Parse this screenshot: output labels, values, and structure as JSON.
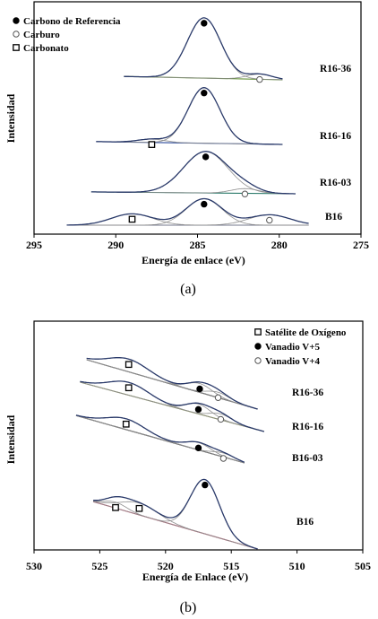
{
  "chart_data": [
    {
      "id": "a",
      "type": "line",
      "caption": "(a)",
      "xlabel": "Energía de enlace (eV)",
      "ylabel": "Intensidad",
      "xlim": [
        295,
        275
      ],
      "xticks": [
        "295",
        "290",
        "285",
        "280",
        "275"
      ],
      "legend": [
        {
          "marker": "filled-circle",
          "label": "Carbono de Referencia"
        },
        {
          "marker": "open-circle",
          "label": "Carburo"
        },
        {
          "marker": "open-square",
          "label": "Carbonato"
        }
      ],
      "samples": [
        {
          "name": "R16-36",
          "baseline": {
            "x": [
              289.5,
              279.8
            ],
            "y": [
              0.55,
              0.2
            ],
            "color": "#5a8a2a"
          },
          "peaks": [
            {
              "center": 284.6,
              "fwhm": 2.4,
              "height": 6.4,
              "type": "Carbono de Referencia"
            },
            {
              "center": 281.2,
              "fwhm": 1.8,
              "height": 0.55,
              "type": "Carburo"
            }
          ]
        },
        {
          "name": "R16-16",
          "baseline": {
            "x": [
              291.2,
              279.8
            ],
            "y": [
              0.3,
              0.0
            ],
            "color": "#2c4a9a"
          },
          "peaks": [
            {
              "center": 284.6,
              "fwhm": 2.3,
              "height": 5.9,
              "type": "Carbono de Referencia"
            },
            {
              "center": 287.8,
              "fwhm": 2.0,
              "height": 0.35,
              "type": "Carbonato"
            }
          ]
        },
        {
          "name": "R16-03",
          "baseline": {
            "x": [
              291.5,
              279.0
            ],
            "y": [
              0.2,
              0.0
            ],
            "color": "#2a7a6a"
          },
          "peaks": [
            {
              "center": 284.5,
              "fwhm": 3.2,
              "height": 4.4,
              "type": "Carbono de Referencia"
            },
            {
              "center": 282.1,
              "fwhm": 2.0,
              "height": 0.5,
              "type": "Carburo"
            }
          ]
        },
        {
          "name": "B16",
          "baseline": {
            "x": [
              293.0,
              278.2
            ],
            "y": [
              0.0,
              0.0
            ],
            "color": "#2a3a8a"
          },
          "peaks": [
            {
              "center": 284.6,
              "fwhm": 2.6,
              "height": 2.8,
              "type": "Carbono de Referencia"
            },
            {
              "center": 289.0,
              "fwhm": 3.0,
              "height": 1.2,
              "type": "Carbonato"
            },
            {
              "center": 280.6,
              "fwhm": 3.0,
              "height": 1.1,
              "type": "Carburo"
            }
          ]
        }
      ]
    },
    {
      "id": "b",
      "type": "line",
      "caption": "(b)",
      "xlabel": "Energía de Enlace (eV)",
      "ylabel": "Intensidad",
      "xlim": [
        530,
        505
      ],
      "xticks": [
        "530",
        "525",
        "520",
        "515",
        "510",
        "505"
      ],
      "legend": [
        {
          "marker": "open-square",
          "label": "Satélite de Oxígeno"
        },
        {
          "marker": "filled-circle",
          "label": "Vanadio V+5"
        },
        {
          "marker": "open-circle",
          "label": "Vanadio V+4"
        }
      ],
      "samples": [
        {
          "name": "R16-36",
          "baseline": {
            "x": [
              526.0,
              513.0
            ],
            "y": [
              5.0,
              0.0
            ],
            "color": "#333333"
          },
          "peaks": [
            {
              "center": 522.8,
              "fwhm": 3.6,
              "height": 1.3,
              "type": "Satélite de Oxígeno"
            },
            {
              "center": 517.4,
              "fwhm": 2.2,
              "height": 0.9,
              "type": "Vanadio V+5"
            },
            {
              "center": 516.0,
              "fwhm": 2.0,
              "height": 0.55,
              "type": "Vanadio V+4"
            }
          ]
        },
        {
          "name": "R16-16",
          "baseline": {
            "x": [
              526.5,
              512.5
            ],
            "y": [
              5.0,
              0.0
            ],
            "color": "#7a8a2a"
          },
          "peaks": [
            {
              "center": 522.8,
              "fwhm": 3.6,
              "height": 1.3,
              "type": "Satélite de Oxígeno"
            },
            {
              "center": 517.5,
              "fwhm": 2.2,
              "height": 1.0,
              "type": "Vanadio V+5"
            },
            {
              "center": 515.8,
              "fwhm": 2.0,
              "height": 0.6,
              "type": "Vanadio V+4"
            }
          ]
        },
        {
          "name": "B16-03",
          "baseline": {
            "x": [
              526.8,
              514.0
            ],
            "y": [
              4.8,
              0.0
            ],
            "color": "#222222"
          },
          "peaks": [
            {
              "center": 523.0,
              "fwhm": 3.4,
              "height": 1.1,
              "type": "Satélite de Oxígeno"
            },
            {
              "center": 517.5,
              "fwhm": 2.2,
              "height": 0.75,
              "type": "Vanadio V+5"
            },
            {
              "center": 515.6,
              "fwhm": 2.0,
              "height": 0.4,
              "type": "Vanadio V+4"
            }
          ]
        },
        {
          "name": "B16",
          "baseline": {
            "x": [
              525.5,
              513.0
            ],
            "y": [
              4.8,
              0.0
            ],
            "color": "#c0395a"
          },
          "peaks": [
            {
              "center": 517.0,
              "fwhm": 2.6,
              "height": 5.5,
              "type": "Vanadio V+5"
            },
            {
              "center": 522.0,
              "fwhm": 3.4,
              "height": 1.2,
              "type": "Satélite de Oxígeno"
            },
            {
              "center": 523.8,
              "fwhm": 2.0,
              "height": 0.6,
              "type": "Satélite de Oxígeno"
            }
          ]
        }
      ]
    }
  ]
}
